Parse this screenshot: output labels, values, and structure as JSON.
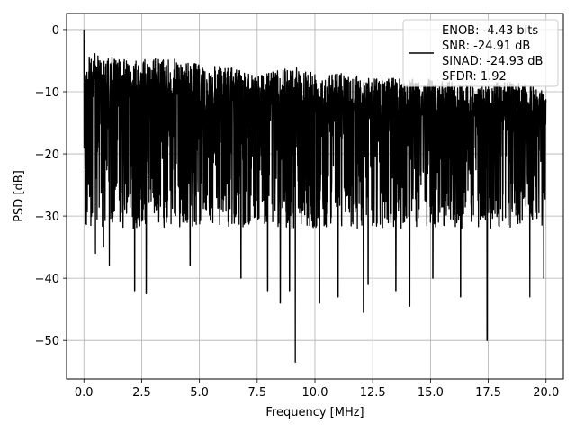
{
  "chart_data": {
    "type": "line",
    "title": "",
    "xlabel": "Frequency [MHz]",
    "ylabel": "PSD [dB]",
    "xlim": [
      -0.75,
      20.75
    ],
    "ylim": [
      -56.2,
      2.6
    ],
    "grid": true,
    "legend_placement": "top-right",
    "x_ticks": [
      0.0,
      2.5,
      5.0,
      7.5,
      10.0,
      12.5,
      15.0,
      17.5,
      20.0
    ],
    "x_tick_labels": [
      "0.0",
      "2.5",
      "5.0",
      "7.5",
      "10.0",
      "12.5",
      "15.0",
      "17.5",
      "20.0"
    ],
    "y_ticks": [
      0,
      -10,
      -20,
      -30,
      -40,
      -50
    ],
    "y_tick_labels": [
      "0",
      "−10",
      "−20",
      "−30",
      "−40",
      "−50"
    ],
    "series": [
      {
        "color": "#000000",
        "x_range": [
          0.0,
          20.0
        ],
        "envelope_upper": [
          [
            0.0,
            0.0
          ],
          [
            0.05,
            -5.5
          ],
          [
            0.35,
            -3.5
          ],
          [
            0.9,
            -5.0
          ],
          [
            1.1,
            -4.3
          ],
          [
            2.0,
            -5.0
          ],
          [
            3.0,
            -4.5
          ],
          [
            4.0,
            -4.8
          ],
          [
            5.0,
            -5.5
          ],
          [
            6.0,
            -6.0
          ],
          [
            7.0,
            -6.5
          ],
          [
            8.0,
            -7.0
          ],
          [
            9.0,
            -6.0
          ],
          [
            10.0,
            -6.5
          ],
          [
            11.0,
            -6.8
          ],
          [
            12.0,
            -7.5
          ],
          [
            13.0,
            -8.0
          ],
          [
            14.0,
            -7.5
          ],
          [
            15.0,
            -8.0
          ],
          [
            16.0,
            -8.5
          ],
          [
            17.0,
            -9.0
          ],
          [
            18.0,
            -8.5
          ],
          [
            19.0,
            -8.5
          ],
          [
            20.0,
            -10.0
          ]
        ],
        "deep_dips": [
          [
            0.3,
            -31.5
          ],
          [
            0.5,
            -36.0
          ],
          [
            0.85,
            -35.0
          ],
          [
            1.1,
            -38.0
          ],
          [
            2.2,
            -42.0
          ],
          [
            2.7,
            -42.5
          ],
          [
            4.6,
            -38.0
          ],
          [
            6.8,
            -40.0
          ],
          [
            7.95,
            -42.0
          ],
          [
            8.5,
            -44.0
          ],
          [
            8.9,
            -42.0
          ],
          [
            9.15,
            -53.5
          ],
          [
            10.2,
            -44.0
          ],
          [
            11.0,
            -43.0
          ],
          [
            12.1,
            -45.5
          ],
          [
            12.3,
            -41.0
          ],
          [
            13.5,
            -42.0
          ],
          [
            14.1,
            -44.5
          ],
          [
            15.1,
            -40.0
          ],
          [
            16.3,
            -43.0
          ],
          [
            17.45,
            -50.0
          ],
          [
            19.3,
            -43.0
          ],
          [
            19.9,
            -40.0
          ]
        ],
        "typical_floor": -27.0,
        "noise_band": [
          -30.0,
          -8.0
        ]
      }
    ],
    "legend": {
      "lines": [
        "ENOB: -4.43 bits",
        "SNR: -24.91 dB",
        "SINAD: -24.93 dB",
        "SFDR: 1.92"
      ]
    }
  }
}
